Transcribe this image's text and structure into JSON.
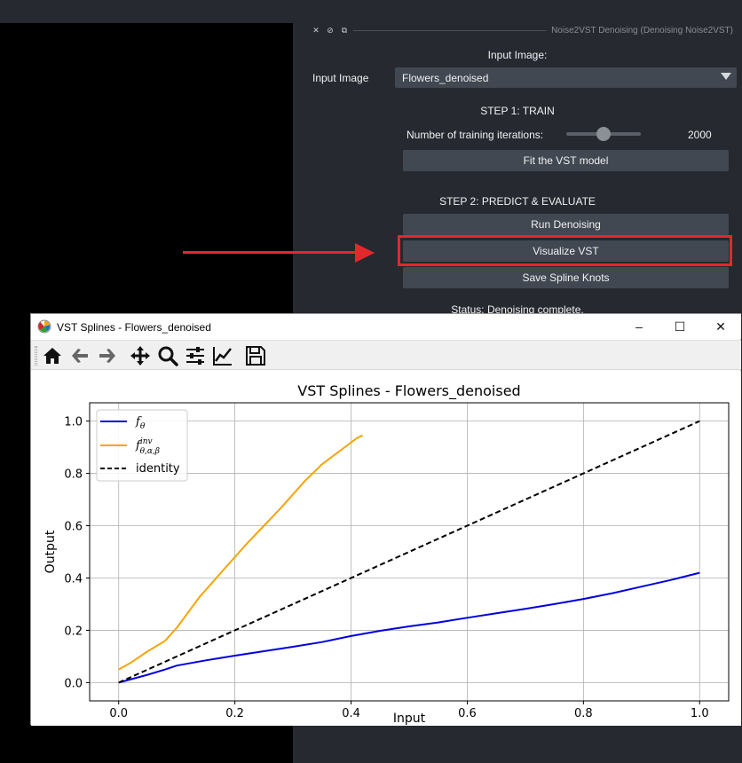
{
  "dock": {
    "title": "Noise2VST Denoising (Denoising Noise2VST)",
    "input_image_heading": "Input Image:",
    "input_image_label": "Input Image",
    "input_image_value": "Flowers_denoised",
    "step1_heading": "STEP 1: TRAIN",
    "iterations_label": "Number of training iterations:",
    "iterations_value": "2000",
    "iterations_slider_fraction": 0.4,
    "fit_button": "Fit the VST model",
    "step2_heading": "STEP 2: PREDICT & EVALUATE",
    "run_button": "Run Denoising",
    "visualize_button": "Visualize VST",
    "save_button": "Save Spline Knots",
    "status": "Status: Denoising complete."
  },
  "window": {
    "title": "VST Splines - Flowers_denoised",
    "toolbar": [
      "home-icon",
      "back-icon",
      "forward-icon",
      "pan-icon",
      "zoom-icon",
      "subplots-icon",
      "edit-axis-icon",
      "save-icon"
    ]
  },
  "colors": {
    "highlight": "#e3282b",
    "f_theta": "#0000dd",
    "f_inv": "#f5a50a",
    "identity": "#000000"
  },
  "chart_data": {
    "type": "line",
    "title": "VST Splines - Flowers_denoised",
    "xlabel": "Input",
    "ylabel": "Output",
    "xlim": [
      -0.05,
      1.05
    ],
    "ylim": [
      -0.07,
      1.07
    ],
    "xticks": [
      "0.0",
      "0.2",
      "0.4",
      "0.6",
      "0.8",
      "1.0"
    ],
    "yticks": [
      "0.0",
      "0.2",
      "0.4",
      "0.6",
      "0.8",
      "1.0"
    ],
    "grid": true,
    "legend_position": "top-left",
    "series": [
      {
        "name": "f_θ",
        "color": "#0000dd",
        "style": "solid",
        "x": [
          0.0,
          0.05,
          0.08,
          0.1,
          0.15,
          0.2,
          0.25,
          0.3,
          0.35,
          0.4,
          0.45,
          0.5,
          0.55,
          0.6,
          0.65,
          0.7,
          0.75,
          0.8,
          0.85,
          0.9,
          0.95,
          1.0
        ],
        "y": [
          0.0,
          0.03,
          0.05,
          0.065,
          0.085,
          0.103,
          0.12,
          0.137,
          0.155,
          0.178,
          0.198,
          0.215,
          0.23,
          0.248,
          0.265,
          0.282,
          0.3,
          0.32,
          0.342,
          0.367,
          0.392,
          0.42
        ]
      },
      {
        "name": "f^inv_θ,α,β",
        "color": "#f5a50a",
        "style": "solid",
        "x": [
          0.0,
          0.02,
          0.05,
          0.065,
          0.08,
          0.1,
          0.12,
          0.14,
          0.16,
          0.18,
          0.2,
          0.22,
          0.25,
          0.28,
          0.3,
          0.32,
          0.35,
          0.38,
          0.41,
          0.42
        ],
        "y": [
          0.05,
          0.075,
          0.12,
          0.14,
          0.16,
          0.21,
          0.27,
          0.33,
          0.38,
          0.43,
          0.48,
          0.53,
          0.6,
          0.67,
          0.72,
          0.77,
          0.835,
          0.885,
          0.935,
          0.945
        ]
      },
      {
        "name": "identity",
        "color": "#000000",
        "style": "dashed",
        "x": [
          0.0,
          1.0
        ],
        "y": [
          0.0,
          1.0
        ]
      }
    ]
  }
}
